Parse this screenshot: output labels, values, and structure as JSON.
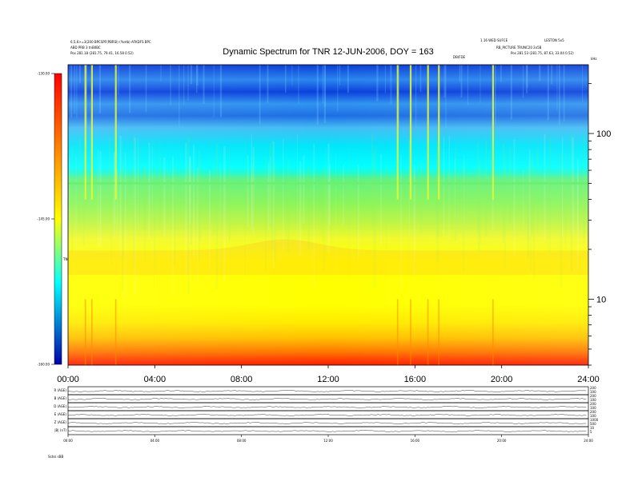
{
  "header": {
    "title": "Dynamic Spectrum for TNR 12-JUN-2006, DOY = 163",
    "left_line1": "6,5,6>=3(200 BPCSPF(PBRSI) (%ntb) AFKDFS BPC",
    "left_line2": "ABD PRB 3 tnB0BC",
    "left_line3": "Pos 281.18 (281.75, 79.41, 16.58 0.52)",
    "right_line1": "1.16 WED SUFCE",
    "right_line2": "LESTON 5x5",
    "right_line3": "RB_PICTURE TRUNC20 2x5B",
    "right_line4": "Pos 281.53 (281.75, 87.63, 33.04 0.52)",
    "annotation": "DB/FDE",
    "khz_label": "kHz"
  },
  "chart_data": [
    {
      "type": "heatmap",
      "title": "Dynamic Spectrum for TNR 12-JUN-2006, DOY = 163",
      "x": {
        "min": 0,
        "max": 24,
        "unit": "hours",
        "ticks": [
          "00:00",
          "04:00",
          "08:00",
          "12:00",
          "16:00",
          "20:00",
          "24:00"
        ]
      },
      "y": {
        "scale": "log",
        "min": 4,
        "max": 260,
        "unit": "kHz",
        "ticks": [
          10,
          100
        ]
      },
      "colorbar": {
        "label": "TNR",
        "min": -160,
        "max": -130,
        "ticks": [
          "-130.00",
          "-145.00",
          "-160.00"
        ],
        "colors": [
          "#ff0000",
          "#ffff00",
          "#00ffff",
          "#0000aa"
        ]
      },
      "features": {
        "bright_interference_line_khz": 50,
        "enhanced_band_khz": [
          14,
          22
        ],
        "burst_times_hours": [
          0.8,
          1.1,
          2.2,
          15.2,
          15.8,
          16.6,
          17.1,
          19.6
        ]
      }
    },
    {
      "type": "line",
      "panel": "orbit-parameters",
      "rows": [
        {
          "label": "R (AGE)",
          "right_ticks": [
            "200",
            "100"
          ]
        },
        {
          "label": "B (AGE)",
          "right_ticks": [
            "200",
            "100"
          ]
        },
        {
          "label": "D (AGE)",
          "right_ticks": [
            "200",
            "100"
          ]
        },
        {
          "label": "E (AGE)",
          "right_ticks": [
            "200",
            "100"
          ]
        },
        {
          "label": "Z (AGE)",
          "right_ticks": [
            "1000",
            "500"
          ]
        },
        {
          "label": "|B| (nT)",
          "right_ticks": [
            "10",
            "5"
          ]
        }
      ],
      "x_ticks": [
        "00:00",
        "04:00",
        "08:00",
        "12:00",
        "16:00",
        "20:00",
        "24:00"
      ],
      "footer": "Sstss  sBB"
    }
  ]
}
